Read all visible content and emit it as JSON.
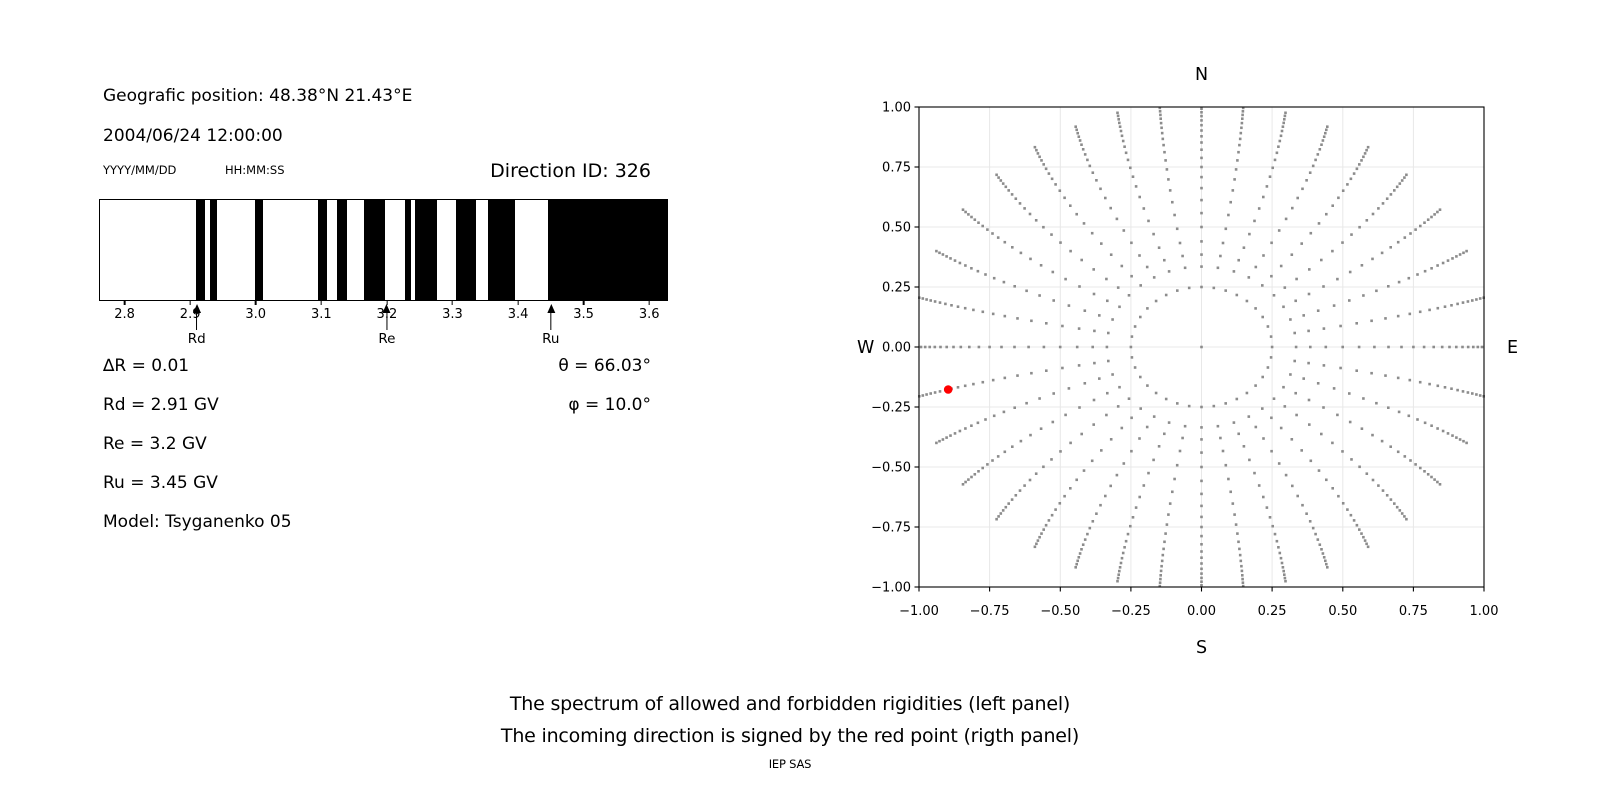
{
  "header": {
    "geo_position": "Geografic position: 48.38°N 21.43°E",
    "datetime": "2004/06/24 12:00:00",
    "date_format": "YYYY/MM/DD",
    "time_format": "HH:MM:SS",
    "direction_id": "Direction ID: 326"
  },
  "info": {
    "delta_r": "∆R = 0.01",
    "rd": "Rd = 2.91 GV",
    "re": "Re = 3.2 GV",
    "ru": "Ru = 3.45 GV",
    "model": "Model: Tsyganenko 05",
    "theta": "θ = 66.03°",
    "phi": "φ = 10.0°"
  },
  "caption": {
    "line1": "The spectrum of allowed and forbidden rigidities (left panel)",
    "line2": "The incoming direction is signed by the red point (rigth panel)",
    "credit": "IEP SAS"
  },
  "colors": {
    "forbidden_band": "#000000",
    "dot_gray": "#8c8c8c",
    "red_point": "#ff0000",
    "grid": "#e8e8e8",
    "spine": "#000000"
  },
  "chart_data": [
    {
      "type": "bar",
      "subtype": "barcode-spectrum",
      "description": "Spectrum of allowed (white) and forbidden (black) rigidities in GV",
      "x_range": [
        2.761,
        3.6256
      ],
      "x_ticks": [
        2.8,
        2.9,
        3.0,
        3.1,
        3.2,
        3.3,
        3.4,
        3.5,
        3.6
      ],
      "forbidden_bands": [
        [
          2.908,
          2.921
        ],
        [
          2.928,
          2.94
        ],
        [
          2.998,
          3.009
        ],
        [
          3.094,
          3.107
        ],
        [
          3.123,
          3.137
        ],
        [
          3.163,
          3.196
        ],
        [
          3.226,
          3.236
        ],
        [
          3.241,
          3.275
        ],
        [
          3.304,
          3.335
        ],
        [
          3.353,
          3.394
        ],
        [
          3.444,
          3.6256
        ]
      ],
      "arrows": [
        {
          "label": "Rd",
          "value": 2.91
        },
        {
          "label": "Re",
          "value": 3.2
        },
        {
          "label": "Ru",
          "value": 3.45
        }
      ]
    },
    {
      "type": "scatter",
      "subtype": "incoming-direction-map",
      "xlim": [
        -1.0,
        1.0
      ],
      "ylim": [
        -1.0,
        1.0
      ],
      "x_ticks": [
        -1.0,
        -0.75,
        -0.5,
        -0.25,
        0.0,
        0.25,
        0.5,
        0.75,
        1.0
      ],
      "y_ticks": [
        -1.0,
        -0.75,
        -0.5,
        -0.25,
        0.0,
        0.25,
        0.5,
        0.75,
        1.0
      ],
      "direction_labels": {
        "top": "N",
        "bottom": "S",
        "left": "W",
        "right": "E"
      },
      "grid": true,
      "center_dot": [
        0,
        0
      ],
      "inner_ring": {
        "radius": 0.25,
        "count": 36
      },
      "spokes": {
        "azimuth_start_deg": 0,
        "azimuth_step_deg": 10,
        "count": 36,
        "radii": [
          1.02,
          1.007,
          0.993,
          0.978,
          0.962,
          0.944,
          0.924,
          0.902,
          0.878,
          0.852,
          0.822,
          0.788,
          0.75,
          0.708,
          0.662,
          0.612,
          0.558,
          0.5,
          0.44,
          0.385,
          0.335
        ],
        "curve_amp_deg": 10,
        "clip_limit": 1.004
      },
      "red_point": {
        "azimuth_deg": 190,
        "radius": 0.914,
        "approx_x": -0.9,
        "approx_y": -0.17
      }
    }
  ]
}
